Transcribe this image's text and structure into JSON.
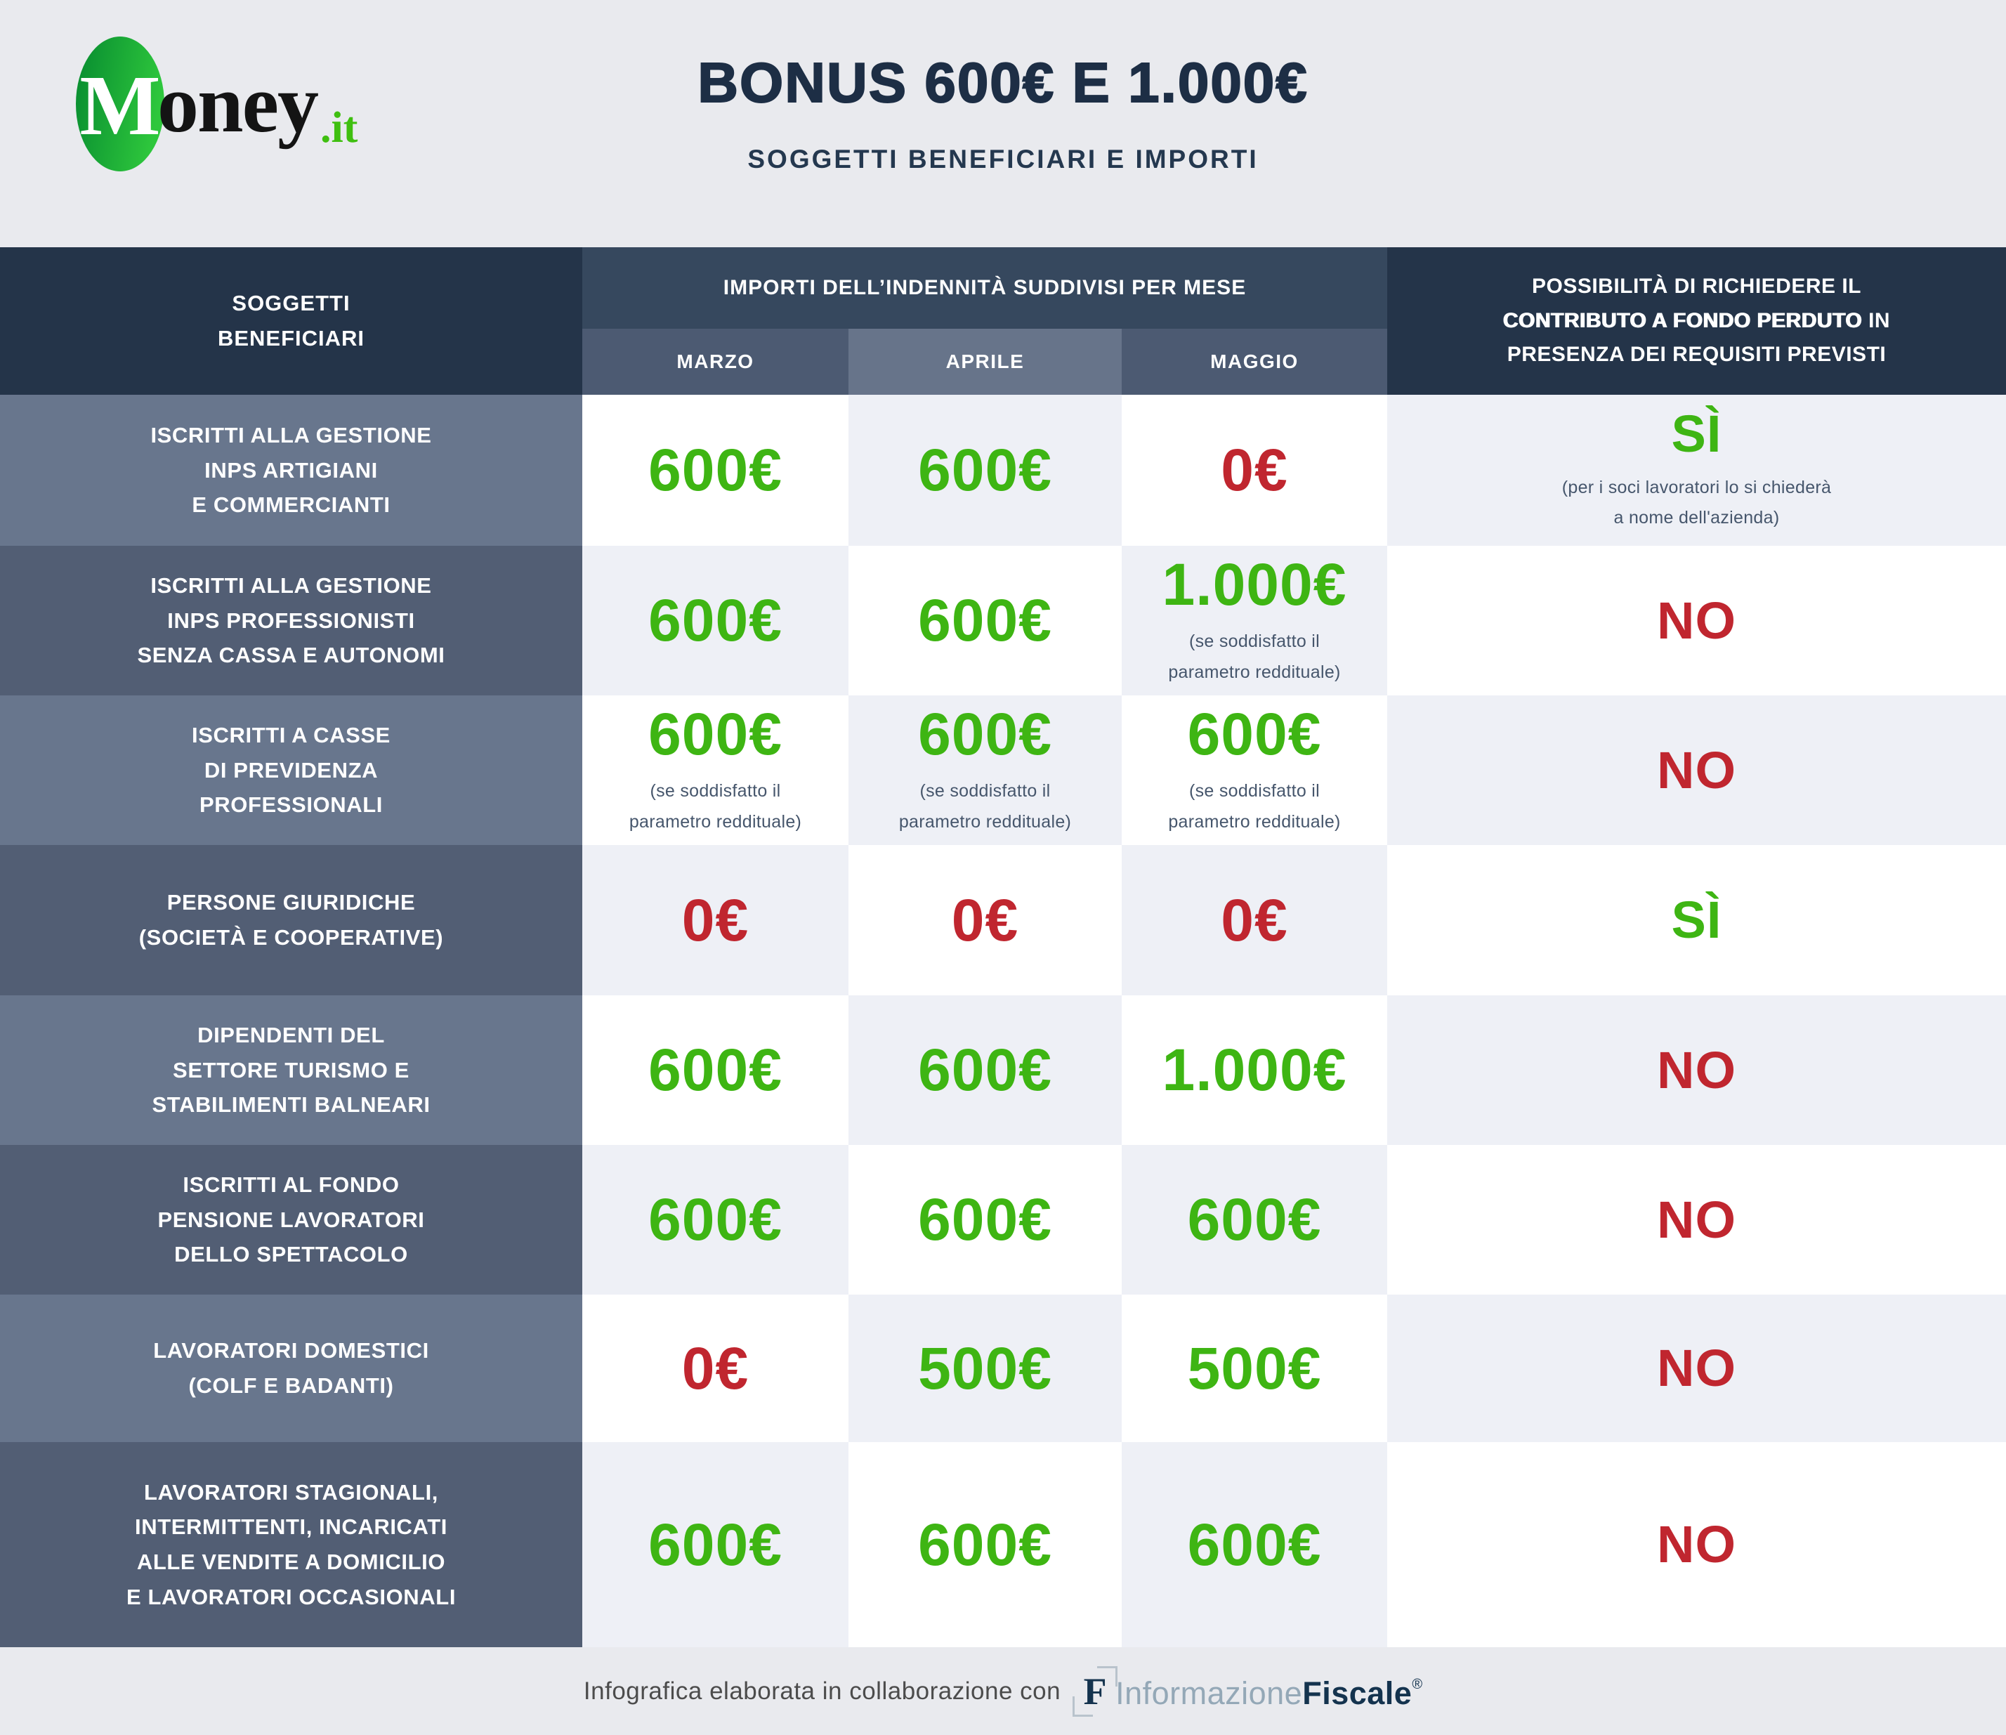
{
  "brand": {
    "circle_letter": "M",
    "name_rest": "oney",
    "tld": ".it"
  },
  "header": {
    "title": "BONUS 600€ E 1.000€",
    "subtitle": "SOGGETTI BENEFICIARI E IMPORTI"
  },
  "colors": {
    "green": "#3eb513",
    "red": "#c0262f",
    "header_navy": "#243449",
    "months_band": "#36485e",
    "month_cell_dark": "#4c5a72",
    "month_cell_light": "#67748a",
    "label_row_light": "#68768d",
    "label_row_dark": "#525e74",
    "cell_light": "#eef0f6",
    "cell_white": "#ffffff",
    "page_bg": "#e9eaee"
  },
  "table": {
    "beneficiaries_header": "SOGGETTI\nBENEFICIARI",
    "months_group_header": "IMPORTI DELL’INDENNITÀ SUDDIVISI PER MESE",
    "months": [
      "MARZO",
      "APRILE",
      "MAGGIO"
    ],
    "fondo_header": {
      "line1": "POSSIBILITÀ DI RICHIEDERE IL",
      "line2_bold": "CONTRIBUTO A FONDO PERDUTO",
      "line2_rest": " IN",
      "line3": "PRESENZA DEI REQUISITI PREVISTI"
    },
    "rows": [
      {
        "label": "ISCRITTI ALLA GESTIONE\nINPS ARTIGIANI\nE COMMERCIANTI",
        "cells": [
          {
            "value": "600€",
            "color": "green",
            "note": ""
          },
          {
            "value": "600€",
            "color": "green",
            "note": ""
          },
          {
            "value": "0€",
            "color": "red",
            "note": ""
          },
          {
            "value": "SÌ",
            "color": "green",
            "note": "(per i soci lavoratori lo si chiederà\na nome dell'azienda)"
          }
        ]
      },
      {
        "label": "ISCRITTI ALLA GESTIONE\nINPS PROFESSIONISTI\nSENZA CASSA E AUTONOMI",
        "cells": [
          {
            "value": "600€",
            "color": "green",
            "note": ""
          },
          {
            "value": "600€",
            "color": "green",
            "note": ""
          },
          {
            "value": "1.000€",
            "color": "green",
            "note": "(se soddisfatto il\nparametro reddituale)"
          },
          {
            "value": "NO",
            "color": "red",
            "note": ""
          }
        ]
      },
      {
        "label": "ISCRITTI A CASSE\nDI PREVIDENZA\nPROFESSIONALI",
        "cells": [
          {
            "value": "600€",
            "color": "green",
            "note": "(se soddisfatto il\nparametro reddituale)"
          },
          {
            "value": "600€",
            "color": "green",
            "note": "(se soddisfatto il\nparametro reddituale)"
          },
          {
            "value": "600€",
            "color": "green",
            "note": "(se soddisfatto il\nparametro reddituale)"
          },
          {
            "value": "NO",
            "color": "red",
            "note": ""
          }
        ]
      },
      {
        "label": "PERSONE GIURIDICHE\n(SOCIETÀ E COOPERATIVE)",
        "cells": [
          {
            "value": "0€",
            "color": "red",
            "note": ""
          },
          {
            "value": "0€",
            "color": "red",
            "note": ""
          },
          {
            "value": "0€",
            "color": "red",
            "note": ""
          },
          {
            "value": "SÌ",
            "color": "green",
            "note": ""
          }
        ]
      },
      {
        "label": "DIPENDENTI DEL\nSETTORE TURISMO E\nSTABILIMENTI BALNEARI",
        "cells": [
          {
            "value": "600€",
            "color": "green",
            "note": ""
          },
          {
            "value": "600€",
            "color": "green",
            "note": ""
          },
          {
            "value": "1.000€",
            "color": "green",
            "note": ""
          },
          {
            "value": "NO",
            "color": "red",
            "note": ""
          }
        ]
      },
      {
        "label": "ISCRITTI AL FONDO\nPENSIONE LAVORATORI\nDELLO SPETTACOLO",
        "cells": [
          {
            "value": "600€",
            "color": "green",
            "note": ""
          },
          {
            "value": "600€",
            "color": "green",
            "note": ""
          },
          {
            "value": "600€",
            "color": "green",
            "note": ""
          },
          {
            "value": "NO",
            "color": "red",
            "note": ""
          }
        ]
      },
      {
        "label": "LAVORATORI DOMESTICI\n(COLF E BADANTI)",
        "cells": [
          {
            "value": "0€",
            "color": "red",
            "note": ""
          },
          {
            "value": "500€",
            "color": "green",
            "note": ""
          },
          {
            "value": "500€",
            "color": "green",
            "note": ""
          },
          {
            "value": "NO",
            "color": "red",
            "note": ""
          }
        ]
      },
      {
        "label": "LAVORATORI STAGIONALI,\nINTERMITTENTI, INCARICATI\nALLE VENDITE A DOMICILIO\nE LAVORATORI OCCASIONALI",
        "cells": [
          {
            "value": "600€",
            "color": "green",
            "note": ""
          },
          {
            "value": "600€",
            "color": "green",
            "note": ""
          },
          {
            "value": "600€",
            "color": "green",
            "note": ""
          },
          {
            "value": "NO",
            "color": "red",
            "note": ""
          }
        ]
      }
    ]
  },
  "footer": {
    "caption": "Infografica elaborata in collaborazione con",
    "logo_icon_letter": "F",
    "logo_light": "Informazione",
    "logo_bold": "Fiscale",
    "registered_mark": "®"
  },
  "chart_data": {
    "type": "table",
    "title": "BONUS 600€ E 1.000€",
    "subtitle": "SOGGETTI BENEFICIARI E IMPORTI",
    "columns": [
      "SOGGETTI BENEFICIARI",
      "MARZO",
      "APRILE",
      "MAGGIO",
      "POSSIBILITÀ DI RICHIEDERE IL CONTRIBUTO A FONDO PERDUTO IN PRESENZA DEI REQUISITI PREVISTI"
    ],
    "column_group_header": "IMPORTI DELL’INDENNITÀ SUDDIVISI PER MESE",
    "rows": [
      [
        "ISCRITTI ALLA GESTIONE INPS ARTIGIANI E COMMERCIANTI",
        "600€",
        "600€",
        "0€",
        "SÌ (per i soci lavoratori lo si chiederà a nome dell'azienda)"
      ],
      [
        "ISCRITTI ALLA GESTIONE INPS PROFESSIONISTI SENZA CASSA E AUTONOMI",
        "600€",
        "600€",
        "1.000€ (se soddisfatto il parametro reddituale)",
        "NO"
      ],
      [
        "ISCRITTI A CASSE DI PREVIDENZA PROFESSIONALI",
        "600€ (se soddisfatto il parametro reddituale)",
        "600€ (se soddisfatto il parametro reddituale)",
        "600€ (se soddisfatto il parametro reddituale)",
        "NO"
      ],
      [
        "PERSONE GIURIDICHE (SOCIETÀ E COOPERATIVE)",
        "0€",
        "0€",
        "0€",
        "SÌ"
      ],
      [
        "DIPENDENTI DEL SETTORE TURISMO E STABILIMENTI BALNEARI",
        "600€",
        "600€",
        "1.000€",
        "NO"
      ],
      [
        "ISCRITTI AL FONDO PENSIONE LAVORATORI DELLO SPETTACOLO",
        "600€",
        "600€",
        "600€",
        "NO"
      ],
      [
        "LAVORATORI DOMESTICI (COLF E BADANTI)",
        "0€",
        "500€",
        "500€",
        "NO"
      ],
      [
        "LAVORATORI STAGIONALI, INTERMITTENTI, INCARICATI ALLE VENDITE A DOMICILIO E LAVORATORI OCCASIONALI",
        "600€",
        "600€",
        "600€",
        "NO"
      ]
    ]
  }
}
